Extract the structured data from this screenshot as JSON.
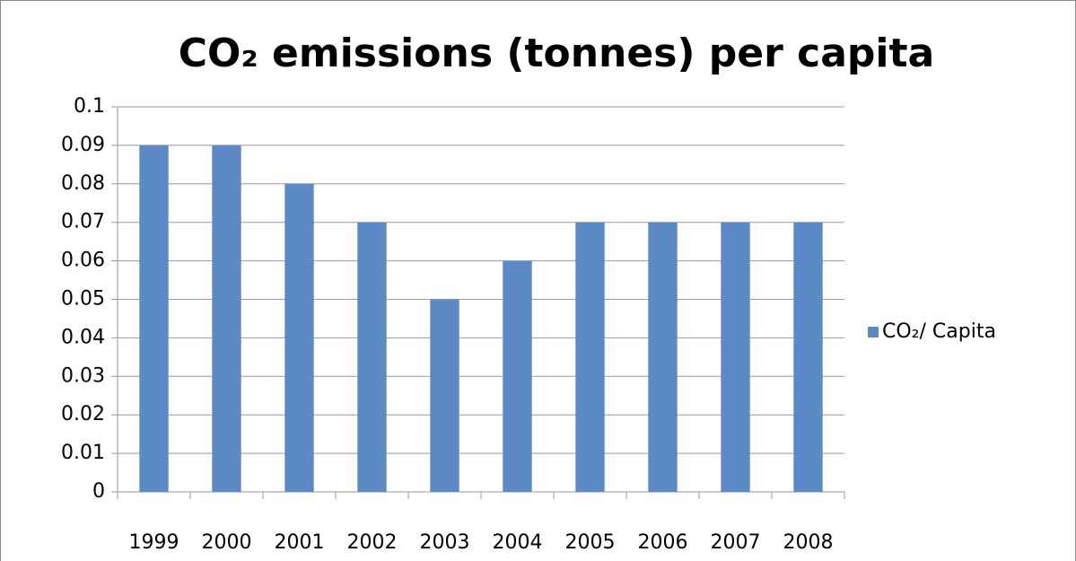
{
  "chart_data": {
    "type": "bar",
    "title": "CO₂ emissions (tonnes) per capita",
    "categories": [
      "1999",
      "2000",
      "2001",
      "2002",
      "2003",
      "2004",
      "2005",
      "2006",
      "2007",
      "2008"
    ],
    "series": [
      {
        "name": "CO₂/ Capita",
        "color": "#5b8ac6",
        "values": [
          0.09,
          0.09,
          0.08,
          0.07,
          0.05,
          0.06,
          0.07,
          0.07,
          0.07,
          0.07
        ]
      }
    ],
    "ylim": [
      0,
      0.1
    ],
    "yticks": [
      0,
      0.01,
      0.02,
      0.03,
      0.04,
      0.05,
      0.06,
      0.07,
      0.08,
      0.09,
      0.1
    ],
    "grid": true,
    "legend": "right"
  }
}
